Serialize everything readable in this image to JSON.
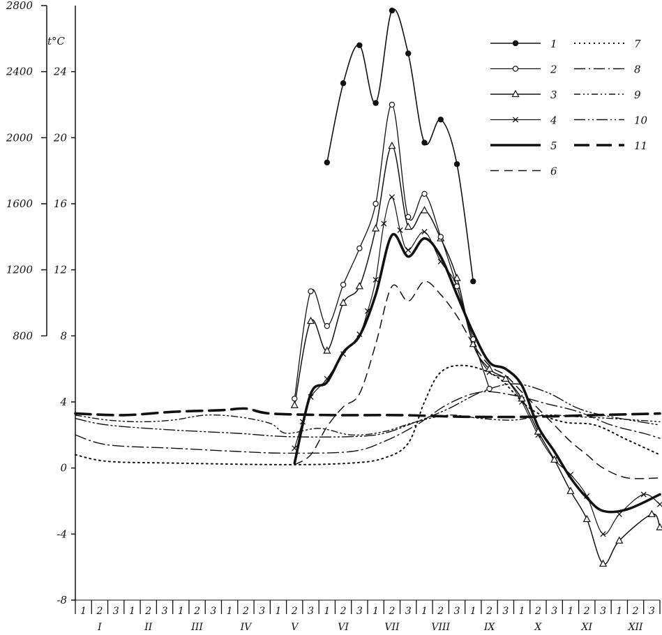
{
  "chart_data": {
    "type": "line",
    "ylabel": "t°C",
    "left_axis": {
      "ticks": [
        -8,
        -4,
        0,
        4,
        8,
        12,
        16,
        20,
        24
      ],
      "ylim": [
        -8,
        28
      ]
    },
    "sum_axis": {
      "ticks": [
        800,
        1200,
        1600,
        2000,
        2400,
        2800
      ],
      "range": [
        800,
        2800
      ]
    },
    "x": {
      "decades": [
        "1",
        "2",
        "3"
      ],
      "months": [
        "I",
        "II",
        "III",
        "IV",
        "V",
        "VI",
        "VII",
        "VIII",
        "IX",
        "X",
        "XI",
        "XII"
      ]
    },
    "legend_labels": [
      "1",
      "2",
      "3",
      "4",
      "5",
      "6",
      "7",
      "8",
      "9",
      "10",
      "11"
    ],
    "series": [
      {
        "name": "1",
        "style": "solid-dot",
        "values": [
          [
            15.5,
            18.5
          ],
          [
            16.5,
            23.3
          ],
          [
            17.5,
            25.6
          ],
          [
            18.5,
            22.1
          ],
          [
            19.5,
            27.7
          ],
          [
            20.5,
            25.1
          ],
          [
            21.5,
            19.7
          ],
          [
            22.5,
            21.1
          ],
          [
            23.5,
            18.4
          ],
          [
            24.5,
            11.3
          ]
        ]
      },
      {
        "name": "2",
        "style": "circle",
        "values": [
          [
            13.5,
            4.2
          ],
          [
            14.5,
            10.7
          ],
          [
            15.5,
            8.6
          ],
          [
            16.5,
            11.1
          ],
          [
            17.5,
            13.3
          ],
          [
            18.5,
            16.0
          ],
          [
            19.5,
            22.0
          ],
          [
            20.5,
            15.2
          ],
          [
            21.5,
            16.6
          ],
          [
            22.5,
            14.0
          ],
          [
            23.5,
            11.0
          ],
          [
            24.5,
            7.8
          ],
          [
            25.5,
            4.8
          ]
        ]
      },
      {
        "name": "3",
        "style": "triangle",
        "values": [
          [
            13.5,
            3.8
          ],
          [
            14.5,
            8.9
          ],
          [
            15.5,
            7.1
          ],
          [
            16.5,
            10.0
          ],
          [
            17.5,
            11.0
          ],
          [
            18.5,
            14.5
          ],
          [
            19.5,
            19.5
          ],
          [
            20.5,
            14.6
          ],
          [
            21.5,
            15.6
          ],
          [
            22.5,
            13.9
          ],
          [
            23.5,
            11.5
          ],
          [
            24.5,
            7.5
          ],
          [
            25.5,
            6.0
          ],
          [
            26.5,
            5.4
          ],
          [
            27.5,
            4.2
          ],
          [
            28.5,
            2.2
          ],
          [
            29.5,
            0.5
          ],
          [
            30.5,
            -1.4
          ],
          [
            31.5,
            -3.1
          ],
          [
            32.5,
            -5.8
          ],
          [
            33.5,
            -4.4
          ],
          [
            35.5,
            -2.8
          ],
          [
            36.0,
            -3.6
          ]
        ]
      },
      {
        "name": "4",
        "style": "cross",
        "values": [
          [
            13.5,
            1.2
          ],
          [
            14.0,
            2.8
          ],
          [
            14.5,
            4.3
          ],
          [
            15.5,
            5.4
          ],
          [
            16.5,
            6.9
          ],
          [
            17.5,
            8.1
          ],
          [
            18.0,
            9.5
          ],
          [
            18.5,
            11.4
          ],
          [
            19.0,
            14.8
          ],
          [
            19.5,
            16.4
          ],
          [
            20.0,
            14.4
          ],
          [
            20.5,
            13.2
          ],
          [
            21.5,
            14.3
          ],
          [
            22.5,
            12.5
          ],
          [
            23.5,
            11.0
          ],
          [
            24.5,
            7.5
          ],
          [
            25.5,
            5.8
          ],
          [
            26.5,
            5.4
          ],
          [
            27.5,
            4.0
          ],
          [
            28.5,
            2.0
          ],
          [
            29.5,
            0.5
          ],
          [
            30.5,
            -0.4
          ],
          [
            31.5,
            -1.7
          ],
          [
            32.5,
            -4.0
          ],
          [
            33.5,
            -2.8
          ],
          [
            35.0,
            -1.6
          ],
          [
            36.0,
            -2.2
          ]
        ]
      },
      {
        "name": "5",
        "style": "thick",
        "values": [
          [
            13.5,
            0.3
          ],
          [
            14.5,
            4.5
          ],
          [
            15.5,
            5.2
          ],
          [
            16.5,
            7.0
          ],
          [
            17.5,
            8.0
          ],
          [
            18.5,
            10.5
          ],
          [
            19.5,
            14.1
          ],
          [
            20.5,
            12.8
          ],
          [
            21.5,
            13.9
          ],
          [
            22.5,
            12.8
          ],
          [
            23.5,
            10.5
          ],
          [
            24.5,
            8.2
          ],
          [
            25.5,
            6.4
          ],
          [
            26.5,
            6.0
          ],
          [
            27.5,
            5.0
          ],
          [
            28.5,
            2.5
          ],
          [
            29.5,
            1.0
          ],
          [
            30.5,
            -0.6
          ],
          [
            31.5,
            -1.8
          ],
          [
            32.5,
            -2.6
          ],
          [
            34.0,
            -2.5
          ],
          [
            36.0,
            -1.6
          ]
        ]
      },
      {
        "name": "6",
        "style": "dash",
        "values": [
          [
            13.5,
            0.2
          ],
          [
            14.5,
            0.8
          ],
          [
            15.5,
            2.5
          ],
          [
            16.5,
            3.7
          ],
          [
            17.5,
            4.5
          ],
          [
            18.5,
            7.5
          ],
          [
            19.5,
            11.0
          ],
          [
            20.5,
            10.1
          ],
          [
            21.5,
            11.3
          ],
          [
            22.5,
            10.5
          ],
          [
            23.5,
            9.2
          ],
          [
            24.5,
            7.5
          ],
          [
            25.5,
            6.2
          ],
          [
            26.5,
            5.6
          ],
          [
            27.5,
            4.6
          ],
          [
            28.5,
            3.6
          ],
          [
            29.5,
            2.6
          ],
          [
            30.5,
            1.6
          ],
          [
            31.5,
            0.8
          ],
          [
            32.5,
            0.0
          ],
          [
            34.0,
            -0.6
          ],
          [
            36.0,
            -0.6
          ]
        ]
      },
      {
        "name": "7",
        "style": "dot",
        "values": [
          [
            0.0,
            0.8
          ],
          [
            2.0,
            0.4
          ],
          [
            6.0,
            0.3
          ],
          [
            13.0,
            0.2
          ],
          [
            17.0,
            0.3
          ],
          [
            19.0,
            0.6
          ],
          [
            20.5,
            1.5
          ],
          [
            21.5,
            4.0
          ],
          [
            22.5,
            5.8
          ],
          [
            24.0,
            6.2
          ],
          [
            26.0,
            5.5
          ],
          [
            28.0,
            3.6
          ],
          [
            30.0,
            2.8
          ],
          [
            32.0,
            2.6
          ],
          [
            34.0,
            1.7
          ],
          [
            36.0,
            0.8
          ]
        ]
      },
      {
        "name": "8",
        "style": "dashdot",
        "values": [
          [
            0.0,
            2.0
          ],
          [
            2.0,
            1.4
          ],
          [
            6.0,
            1.2
          ],
          [
            10.0,
            1.0
          ],
          [
            13.0,
            0.9
          ],
          [
            17.0,
            1.0
          ],
          [
            19.0,
            1.6
          ],
          [
            21.0,
            2.6
          ],
          [
            23.0,
            3.9
          ],
          [
            25.0,
            4.6
          ],
          [
            27.0,
            4.4
          ],
          [
            29.0,
            3.9
          ],
          [
            31.0,
            3.4
          ],
          [
            33.0,
            2.6
          ],
          [
            35.0,
            2.1
          ],
          [
            36.0,
            1.8
          ]
        ]
      },
      {
        "name": "9",
        "style": "dashdotdot-short",
        "values": [
          [
            0.0,
            3.2
          ],
          [
            2.0,
            2.9
          ],
          [
            4.0,
            2.8
          ],
          [
            6.0,
            2.9
          ],
          [
            8.0,
            3.2
          ],
          [
            10.0,
            3.1
          ],
          [
            12.0,
            2.7
          ],
          [
            13.0,
            2.1
          ],
          [
            15.0,
            2.4
          ],
          [
            17.0,
            2.0
          ],
          [
            19.0,
            2.2
          ],
          [
            21.0,
            2.8
          ],
          [
            23.0,
            3.2
          ],
          [
            25.0,
            3.0
          ],
          [
            27.0,
            2.9
          ],
          [
            29.0,
            3.2
          ],
          [
            31.0,
            3.1
          ],
          [
            33.0,
            3.0
          ],
          [
            36.0,
            2.8
          ]
        ]
      },
      {
        "name": "10",
        "style": "dashdotdot",
        "values": [
          [
            0.0,
            3.0
          ],
          [
            2.0,
            2.6
          ],
          [
            6.0,
            2.3
          ],
          [
            10.0,
            2.1
          ],
          [
            13.0,
            1.9
          ],
          [
            17.0,
            1.9
          ],
          [
            19.0,
            2.1
          ],
          [
            21.0,
            2.8
          ],
          [
            23.0,
            3.6
          ],
          [
            25.0,
            4.6
          ],
          [
            27.0,
            5.1
          ],
          [
            29.0,
            4.6
          ],
          [
            31.0,
            3.6
          ],
          [
            33.0,
            3.1
          ],
          [
            36.0,
            2.6
          ]
        ]
      },
      {
        "name": "11",
        "style": "longdash",
        "values": [
          [
            0.0,
            3.3
          ],
          [
            3.0,
            3.2
          ],
          [
            6.0,
            3.4
          ],
          [
            9.0,
            3.5
          ],
          [
            10.5,
            3.6
          ],
          [
            12.0,
            3.3
          ],
          [
            16.0,
            3.2
          ],
          [
            20.0,
            3.2
          ],
          [
            24.0,
            3.1
          ],
          [
            28.0,
            3.1
          ],
          [
            32.0,
            3.2
          ],
          [
            36.0,
            3.3
          ]
        ]
      }
    ]
  }
}
